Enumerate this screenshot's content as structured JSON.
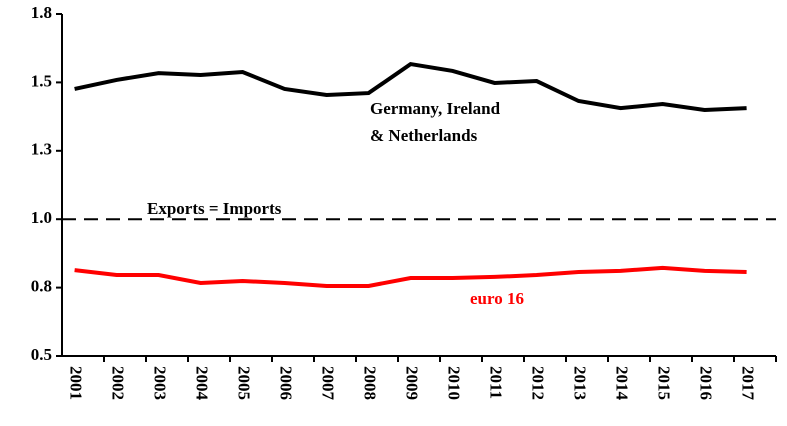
{
  "chart_data": {
    "type": "line",
    "categories": [
      "2001",
      "2002",
      "2003",
      "2004",
      "2005",
      "2006",
      "2007",
      "2008",
      "2009",
      "2010",
      "2011",
      "2012",
      "2013",
      "2014",
      "2015",
      "2016",
      "2017"
    ],
    "series": [
      {
        "name": "Germany, Ireland & Netherlands",
        "color": "#000000",
        "values": [
          1.476,
          1.509,
          1.534,
          1.527,
          1.538,
          1.476,
          1.454,
          1.461,
          1.567,
          1.542,
          1.498,
          1.505,
          1.432,
          1.406,
          1.421,
          1.399,
          1.406
        ]
      },
      {
        "name": "euro 16",
        "color": "#ff0000",
        "values": [
          0.814,
          0.796,
          0.796,
          0.767,
          0.774,
          0.767,
          0.756,
          0.756,
          0.785,
          0.785,
          0.789,
          0.796,
          0.807,
          0.811,
          0.822,
          0.811,
          0.807
        ]
      }
    ],
    "reference_line": {
      "value": 1.0,
      "label": "Exports = Imports"
    },
    "ylim": [
      0.5,
      1.75
    ],
    "yticks": [
      0.5,
      {
        "value": 0.75,
        "label": "0.8"
      },
      {
        "value": 1.0,
        "label": "1.0"
      },
      {
        "value": 1.25,
        "label": "1.3"
      },
      1.5,
      {
        "value": 1.75,
        "label": "1.8"
      }
    ],
    "grid": false
  }
}
